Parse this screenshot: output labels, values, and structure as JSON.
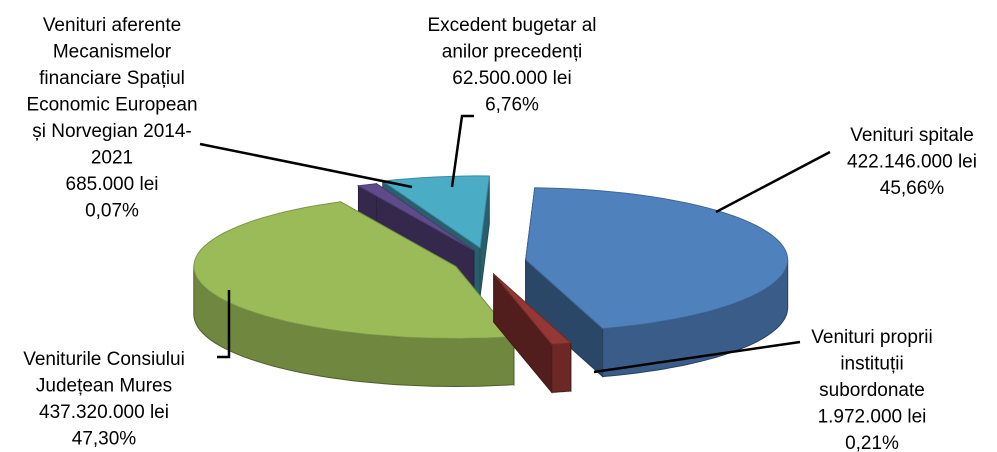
{
  "chart_data": {
    "type": "pie",
    "title": "",
    "unit": "lei",
    "exploded": true,
    "view": "3d",
    "slices": [
      {
        "name": "Venituri spitale",
        "label_lines": [
          "Venituri spitale",
          "422.146.000 lei",
          "45,66%"
        ],
        "value": 422146000,
        "percent": 45.66,
        "color": "#4F81BD"
      },
      {
        "name": "Venituri proprii instituții subordonate",
        "label_lines": [
          "Venituri proprii",
          "instituții",
          "subordonate",
          "1.972.000 lei",
          "0,21%"
        ],
        "value": 1972000,
        "percent": 0.21,
        "color": "#953735"
      },
      {
        "name": "Veniturile Consiului Județean Mures",
        "label_lines": [
          "Veniturile Consiului",
          "Județean Mures",
          "437.320.000 lei",
          "47,30%"
        ],
        "value": 437320000,
        "percent": 47.3,
        "color": "#9BBB59"
      },
      {
        "name": "Venituri aferente Mecanismelor financiare Spațiul Economic European și Norvegian 2014-2021",
        "label_lines": [
          "Venituri aferente",
          "Mecanismelor",
          "financiare Spațiul",
          "Economic European",
          "și Norvegian 2014-",
          "2021",
          "685.000 lei",
          "0,07%"
        ],
        "value": 685000,
        "percent": 0.07,
        "color": "#5F4B8B"
      },
      {
        "name": "Excedent bugetar al anilor precedenți",
        "label_lines": [
          "Excedent bugetar al",
          "anilor precedenți",
          "62.500.000 lei",
          "6,76%"
        ],
        "value": 62500000,
        "percent": 6.76,
        "color": "#4BACC6"
      }
    ]
  }
}
